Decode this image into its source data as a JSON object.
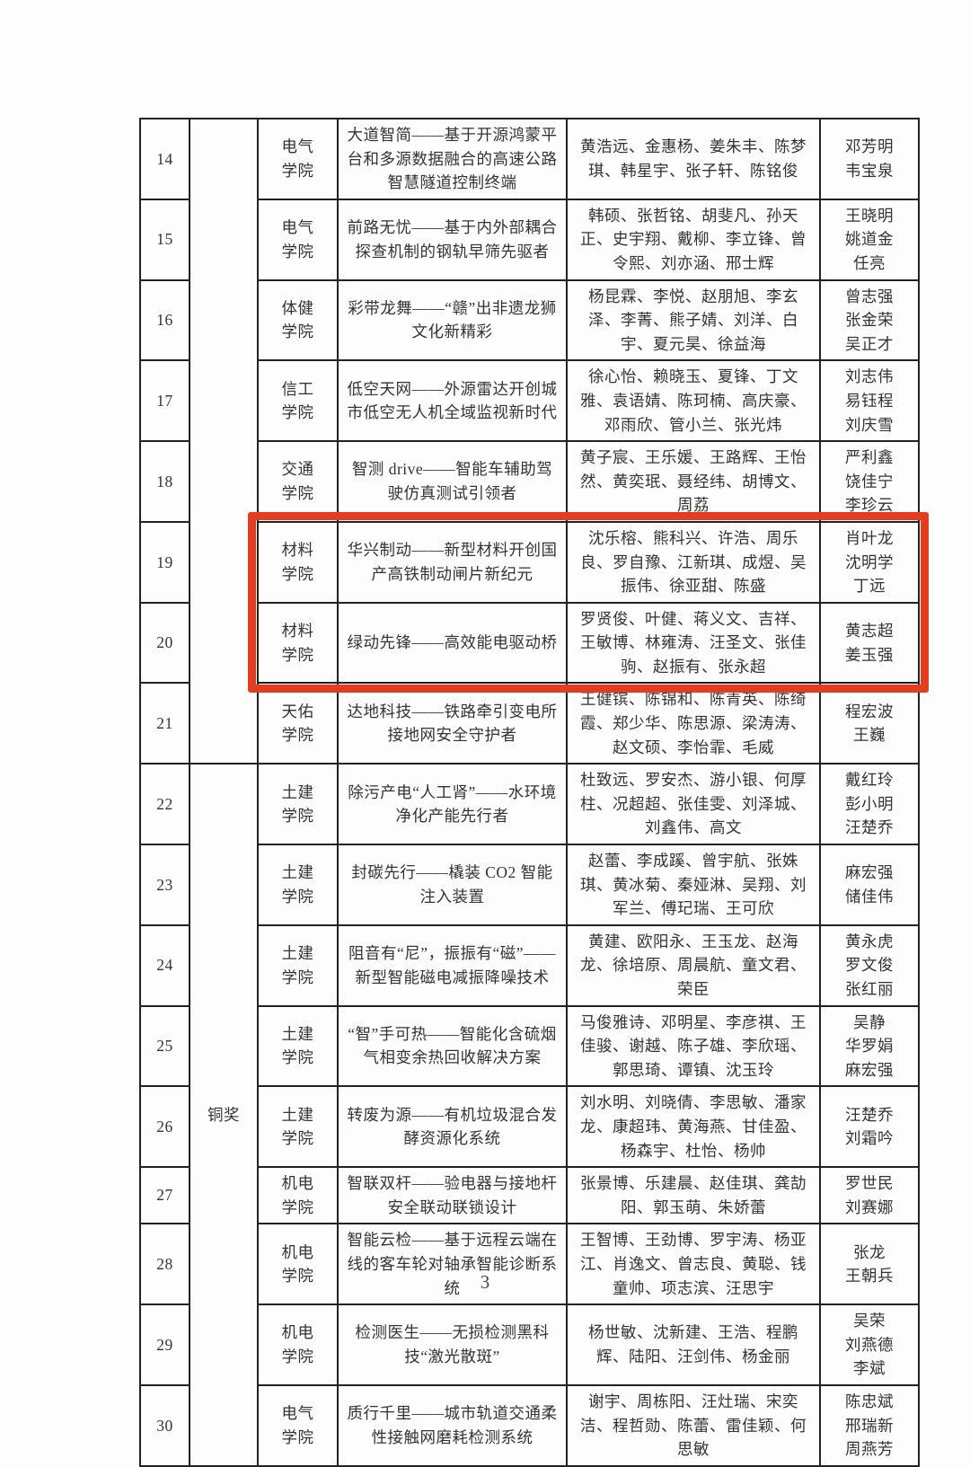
{
  "page": {
    "number": "3"
  },
  "highlight": {
    "color": "#e43c1e",
    "rows": [
      "19",
      "20"
    ]
  },
  "table": {
    "award_groups": [
      {
        "label": ""
      },
      {
        "label": "铜奖"
      }
    ],
    "rows": [
      {
        "no": "14",
        "college": "电气\n学院",
        "project": "大道智简——基于开源鸿蒙平台和多源数据融合的高速公路智慧隧道控制终端",
        "members": "黄浩远、金惠杨、姜朱丰、陈梦琪、韩星宇、张子轩、陈铭俊",
        "advisors": "邓芳明\n韦宝泉"
      },
      {
        "no": "15",
        "college": "电气\n学院",
        "project": "前路无忧——基于内外部耦合探查机制的钢轨早筛先驱者",
        "members": "韩硕、张哲铭、胡斐凡、孙天正、史宇翔、戴柳、李立锋、曾令熙、刘亦涵、邢士辉",
        "advisors": "王晓明\n姚道金\n任亮"
      },
      {
        "no": "16",
        "college": "体健\n学院",
        "project": "彩带龙舞——“赣”出非遗龙狮文化新精彩",
        "members": "杨昆霖、李悦、赵朋旭、李玄泽、李菁、熊子婧、刘洋、白宇、夏元昊、徐益海",
        "advisors": "曾志强\n张金荣\n吴正才"
      },
      {
        "no": "17",
        "college": "信工\n学院",
        "project": "低空天网——外源雷达开创城市低空无人机全域监视新时代",
        "members": "徐心怡、赖晓玉、夏锋、丁文雅、袁语婧、陈珂楠、高庆豪、邓雨欣、管小兰、张光炜",
        "advisors": "刘志伟\n易钰程\n刘庆雪"
      },
      {
        "no": "18",
        "college": "交通\n学院",
        "project": "智测 drive——智能车辅助驾驶仿真测试引领者",
        "members": "黄子宸、王乐媛、王路辉、王怡然、黄奕珉、聂经纬、胡博文、周荔",
        "advisors": "严利鑫\n饶佳宁\n李珍云"
      },
      {
        "no": "19",
        "college": "材料\n学院",
        "project": "华兴制动——新型材料开创国产高铁制动闸片新纪元",
        "members": "沈乐榕、熊科兴、许浩、周乐良、罗自豫、江新琪、成煜、吴振伟、徐亚甜、陈盛",
        "advisors": "肖叶龙\n沈明学\n丁远"
      },
      {
        "no": "20",
        "college": "材料\n学院",
        "project": "绿动先锋——高效能电驱动桥",
        "members": "罗贤俊、叶健、蒋义文、吉祥、王敏博、林雍涛、汪圣文、张佳驹、赵振有、张永超",
        "advisors": "黄志超\n姜玉强"
      },
      {
        "no": "21",
        "college": "天佑\n学院",
        "project": "达地科技——铁路牵引变电所接地网安全守护者",
        "members": "王健镔、陈锦和、陈青英、陈绮霞、郑少华、陈思源、梁涛涛、赵文硕、李怡霏、毛威",
        "advisors": "程宏波\n王巍"
      },
      {
        "no": "22",
        "college": "土建\n学院",
        "project": "除污产电“人工肾”——水环境净化产能先行者",
        "members": "杜致远、罗安杰、游小银、何厚柱、况超超、张佳雯、刘泽城、刘鑫伟、高文",
        "advisors": "戴红玲\n彭小明\n汪楚乔"
      },
      {
        "no": "23",
        "college": "土建\n学院",
        "project": "封碳先行——橇装 CO2 智能注入装置",
        "members": "赵蕾、李成蹊、曾宇航、张姝琪、黄冰菊、秦娅淋、吴翔、刘军兰、傅玘瑞、王可欣",
        "advisors": "麻宏强\n储佳伟"
      },
      {
        "no": "24",
        "college": "土建\n学院",
        "project": "阻音有“尼”，振振有“磁”——新型智能磁电减振降噪技术",
        "members": "黄建、欧阳永、王玉龙、赵海龙、徐培原、周晨航、童文君、荣臣",
        "advisors": "黄永虎\n罗文俊\n张红丽"
      },
      {
        "no": "25",
        "college": "土建\n学院",
        "project": "“智”手可热——智能化含硫烟气相变余热回收解决方案",
        "members": "马俊雅诗、邓明星、李彦祺、王佳骏、谢越、陈子雄、李欣瑶、郭思琦、谭镇、沈玉玲",
        "advisors": "吴静\n华罗娟\n麻宏强"
      },
      {
        "no": "26",
        "college": "土建\n学院",
        "project": "转废为源——有机垃圾混合发酵资源化系统",
        "members": "刘水明、刘晓倩、李思敏、潘家龙、康超玮、黄海燕、甘佳盈、杨森宇、杜怡、杨帅",
        "advisors": "汪楚乔\n刘霜吟"
      },
      {
        "no": "27",
        "college": "机电\n学院",
        "project": "智联双杆——验电器与接地杆安全联动联锁设计",
        "members": "张景博、乐建晨、赵佳琪、龚劼阳、郭玉萌、朱娇蕾",
        "advisors": "罗世民\n刘赛娜"
      },
      {
        "no": "28",
        "college": "机电\n学院",
        "project": "智能云检——基于远程云端在线的客车轮对轴承智能诊断系统",
        "members": "王智博、王劲博、罗宇涛、杨亚江、肖逸文、曾志良、黄聪、钱童帅、项志滨、汪思宇",
        "advisors": "张龙\n王朝兵"
      },
      {
        "no": "29",
        "college": "机电\n学院",
        "project": "检测医生——无损检测黑科技“激光散斑”",
        "members": "杨世敏、沈新建、王浩、程鹏辉、陆阳、汪剑伟、杨金丽",
        "advisors": "吴荣\n刘燕德\n李斌"
      },
      {
        "no": "30",
        "college": "电气\n学院",
        "project": "质行千里——城市轨道交通柔性接触网磨耗检测系统",
        "members": "谢宇、周栋阳、汪灶瑞、宋奕洁、程哲勋、陈蕾、雷佳颖、何思敏",
        "advisors": "陈忠斌\n邢瑞新\n周燕芳"
      }
    ]
  }
}
